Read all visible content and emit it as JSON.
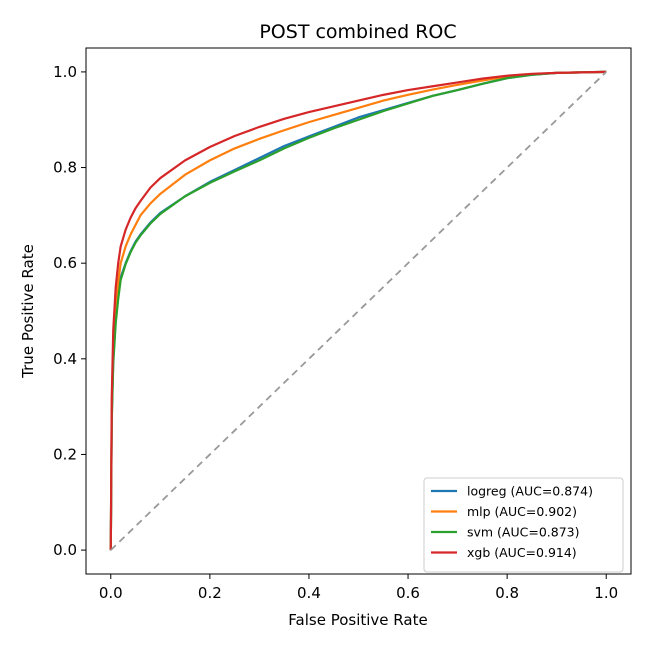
{
  "chart_data": {
    "type": "line",
    "title": "POST combined ROC",
    "xlabel": "False Positive Rate",
    "ylabel": "True Positive Rate",
    "xlim": [
      -0.05,
      1.05
    ],
    "ylim": [
      -0.05,
      1.05
    ],
    "xticks": [
      "0.0",
      "0.2",
      "0.4",
      "0.6",
      "0.8",
      "1.0"
    ],
    "yticks": [
      "0.0",
      "0.2",
      "0.4",
      "0.6",
      "0.8",
      "1.0"
    ],
    "grid": false,
    "legend_position": "lower-right",
    "series": [
      {
        "name": "logreg (AUC=0.874)",
        "color": "#1f77b4",
        "x": [
          0,
          0.002,
          0.005,
          0.01,
          0.015,
          0.02,
          0.03,
          0.04,
          0.05,
          0.06,
          0.08,
          0.1,
          0.15,
          0.2,
          0.25,
          0.3,
          0.35,
          0.4,
          0.45,
          0.5,
          0.55,
          0.6,
          0.65,
          0.7,
          0.75,
          0.8,
          0.85,
          0.9,
          0.95,
          1.0
        ],
        "y": [
          0,
          0.28,
          0.4,
          0.48,
          0.53,
          0.57,
          0.6,
          0.625,
          0.645,
          0.66,
          0.685,
          0.705,
          0.74,
          0.77,
          0.795,
          0.82,
          0.845,
          0.865,
          0.885,
          0.905,
          0.92,
          0.935,
          0.95,
          0.962,
          0.975,
          0.987,
          0.994,
          0.998,
          0.999,
          1.0
        ]
      },
      {
        "name": "mlp (AUC=0.902)",
        "color": "#ff7f0e",
        "x": [
          0,
          0.002,
          0.005,
          0.01,
          0.015,
          0.02,
          0.03,
          0.04,
          0.05,
          0.06,
          0.08,
          0.1,
          0.15,
          0.2,
          0.25,
          0.3,
          0.35,
          0.4,
          0.45,
          0.5,
          0.55,
          0.6,
          0.65,
          0.7,
          0.75,
          0.8,
          0.85,
          0.9,
          0.95,
          1.0
        ],
        "y": [
          0,
          0.3,
          0.43,
          0.51,
          0.56,
          0.6,
          0.635,
          0.66,
          0.68,
          0.7,
          0.725,
          0.745,
          0.785,
          0.815,
          0.84,
          0.86,
          0.878,
          0.895,
          0.91,
          0.925,
          0.94,
          0.952,
          0.963,
          0.973,
          0.982,
          0.99,
          0.995,
          0.998,
          0.999,
          1.0
        ]
      },
      {
        "name": "svm (AUC=0.873)",
        "color": "#2ca02c",
        "x": [
          0,
          0.002,
          0.005,
          0.01,
          0.015,
          0.02,
          0.03,
          0.04,
          0.05,
          0.06,
          0.08,
          0.1,
          0.15,
          0.2,
          0.25,
          0.3,
          0.35,
          0.4,
          0.45,
          0.5,
          0.55,
          0.6,
          0.65,
          0.7,
          0.75,
          0.8,
          0.85,
          0.9,
          0.95,
          1.0
        ],
        "y": [
          0,
          0.27,
          0.39,
          0.475,
          0.525,
          0.565,
          0.598,
          0.623,
          0.643,
          0.658,
          0.683,
          0.703,
          0.74,
          0.768,
          0.792,
          0.815,
          0.84,
          0.862,
          0.882,
          0.9,
          0.918,
          0.934,
          0.95,
          0.962,
          0.975,
          0.987,
          0.994,
          0.998,
          0.999,
          1.0
        ]
      },
      {
        "name": "xgb (AUC=0.914)",
        "color": "#d62728",
        "x": [
          0,
          0.002,
          0.005,
          0.01,
          0.015,
          0.02,
          0.03,
          0.04,
          0.05,
          0.06,
          0.08,
          0.1,
          0.15,
          0.2,
          0.25,
          0.3,
          0.35,
          0.4,
          0.45,
          0.5,
          0.55,
          0.6,
          0.65,
          0.7,
          0.75,
          0.8,
          0.85,
          0.9,
          0.95,
          1.0
        ],
        "y": [
          0,
          0.32,
          0.46,
          0.55,
          0.6,
          0.635,
          0.67,
          0.695,
          0.715,
          0.73,
          0.758,
          0.778,
          0.815,
          0.843,
          0.866,
          0.885,
          0.902,
          0.916,
          0.928,
          0.94,
          0.952,
          0.962,
          0.97,
          0.978,
          0.986,
          0.992,
          0.996,
          0.998,
          0.999,
          1.0
        ]
      },
      {
        "name": "",
        "role": "chance-diagonal",
        "color": "#999999",
        "dashed": true,
        "x": [
          0,
          1
        ],
        "y": [
          0,
          1
        ]
      }
    ]
  }
}
